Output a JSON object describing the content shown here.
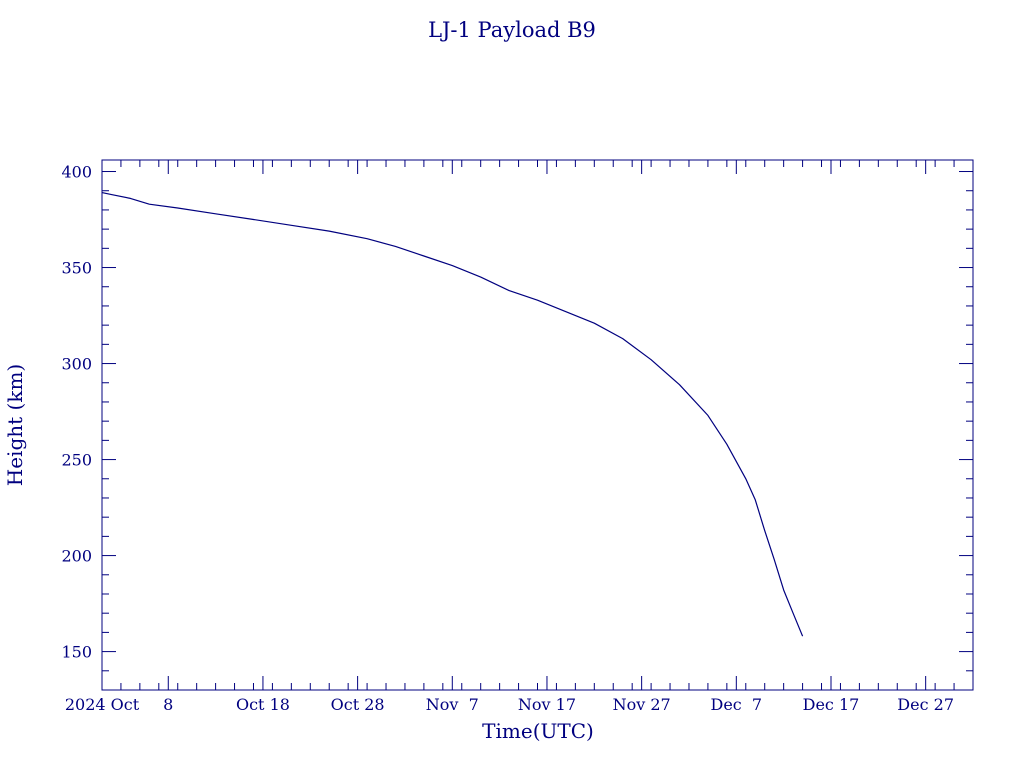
{
  "chart_data": {
    "type": "line",
    "title": "LJ-1 Payload B9",
    "xlabel": "Time(UTC)",
    "ylabel": "Height (km)",
    "color": "#00007f",
    "grid": false,
    "x_ticks": [
      {
        "date": "2024-10-01",
        "label": "2024 Oct"
      },
      {
        "date": "2024-10-08",
        "label": "8"
      },
      {
        "date": "2024-10-18",
        "label": "Oct 18"
      },
      {
        "date": "2024-10-28",
        "label": "Oct 28"
      },
      {
        "date": "2024-11-07",
        "label": "Nov  7"
      },
      {
        "date": "2024-11-17",
        "label": "Nov 17"
      },
      {
        "date": "2024-11-27",
        "label": "Nov 27"
      },
      {
        "date": "2024-12-07",
        "label": "Dec  7"
      },
      {
        "date": "2024-12-17",
        "label": "Dec 17"
      },
      {
        "date": "2024-12-27",
        "label": "Dec 27"
      }
    ],
    "y_ticks": [
      150,
      200,
      250,
      300,
      350,
      400
    ],
    "xlim": [
      "2024-10-01",
      "2025-01-01"
    ],
    "ylim": [
      130,
      406
    ],
    "series": [
      {
        "x": [
          "2024-10-01",
          "2024-10-02",
          "2024-10-04",
          "2024-10-06",
          "2024-10-09",
          "2024-10-13",
          "2024-10-17",
          "2024-10-21",
          "2024-10-25",
          "2024-10-29",
          "2024-11-01",
          "2024-11-04",
          "2024-11-07",
          "2024-11-10",
          "2024-11-13",
          "2024-11-16",
          "2024-11-19",
          "2024-11-22",
          "2024-11-25",
          "2024-11-28",
          "2024-12-01",
          "2024-12-04",
          "2024-12-06",
          "2024-12-08",
          "2024-12-09",
          "2024-12-10",
          "2024-12-11",
          "2024-12-12",
          "2024-12-13",
          "2024-12-14"
        ],
        "y": [
          389,
          388,
          386,
          383,
          381,
          378,
          375,
          372,
          369,
          365,
          361,
          356,
          351,
          345,
          338,
          333,
          327,
          321,
          313,
          302,
          289,
          273,
          258,
          240,
          229,
          213,
          198,
          182,
          170,
          158
        ]
      }
    ]
  }
}
